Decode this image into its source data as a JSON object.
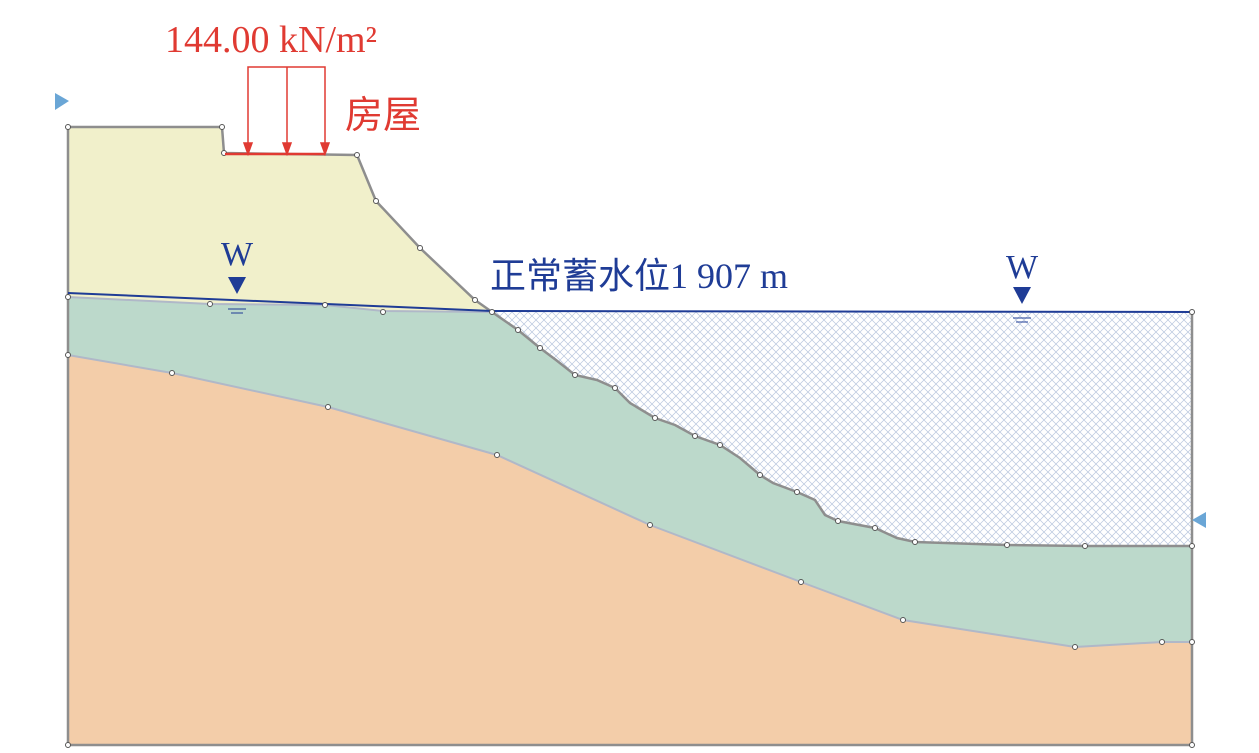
{
  "load": {
    "label": "144.00 kN/m²",
    "name": "房屋"
  },
  "water_markers": [
    "W",
    "W"
  ],
  "water_level_label": "正常蓄水位1 907 m"
}
